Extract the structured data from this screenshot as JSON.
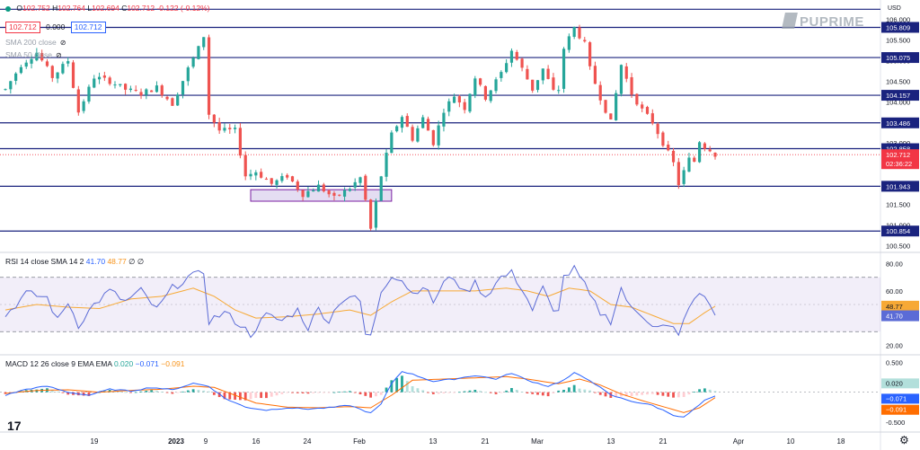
{
  "header": {
    "ohlc": {
      "O": "102.752",
      "H": "102.764",
      "L": "102.694",
      "C": "102.712",
      "change": "-0.122 (-0.12%)"
    },
    "box_price": "102.712",
    "box_zero": "0.000",
    "box_price2": "102.712",
    "sma_label_1": "SMA 200 close",
    "sma_label_2": "SMA 50 close"
  },
  "logo": {
    "text": "PUPRIME"
  },
  "currency": "USD",
  "rsi_header": {
    "label": "RSI 14 close SMA 14 2",
    "rsi": "41.70",
    "sma": "48.77",
    "extra": "∅ ∅"
  },
  "macd_header": {
    "label": "MACD 12 26 close 9 EMA EMA",
    "hist": "0.020",
    "macd": "−0.071",
    "signal": "−0.091"
  },
  "colors": {
    "up": "#26a69a",
    "down": "#ef5350",
    "level": "#1a237e",
    "rsi": "#5b6bd6",
    "rsi_sma": "#f7a935",
    "macd": "#2962ff",
    "signal": "#ff6d00",
    "range_box": "#b39ddb",
    "current": "#f23645"
  },
  "chart_data": [
    {
      "type": "candlestick",
      "name": "price",
      "yaxis_ticks": [
        "106.000",
        "105.500",
        "105.000",
        "104.500",
        "104.000",
        "103.500",
        "103.000",
        "102.500",
        "102.000",
        "101.500",
        "101.000",
        "100.500"
      ],
      "ylim": [
        100.4,
        106.3
      ],
      "levels": [
        106.25,
        105.809,
        105.075,
        104.157,
        103.486,
        102.858,
        101.943,
        100.854
      ],
      "level_labels": [
        "105.809",
        "105.075",
        "104.157",
        "103.486",
        "102.858",
        "101.943",
        "100.854"
      ],
      "current_price": "102.712",
      "countdown": "02:36:22",
      "range_box": {
        "from_index": 47,
        "to_index": 74,
        "low": 101.58,
        "high": 101.86
      },
      "path": [
        [
          0,
          104.3
        ],
        [
          3,
          104.9
        ],
        [
          6,
          105.2
        ],
        [
          9,
          104.6
        ],
        [
          12,
          105.0
        ],
        [
          14,
          103.75
        ],
        [
          17,
          104.6
        ],
        [
          20,
          104.5
        ],
        [
          23,
          104.3
        ],
        [
          26,
          104.2
        ],
        [
          29,
          104.35
        ],
        [
          32,
          103.95
        ],
        [
          35,
          104.8
        ],
        [
          37,
          105.3
        ],
        [
          38,
          105.6
        ],
        [
          39,
          103.7
        ],
        [
          41,
          103.3
        ],
        [
          44,
          103.3
        ],
        [
          46,
          102.2
        ],
        [
          48,
          102.3
        ],
        [
          51,
          102.0
        ],
        [
          54,
          102.2
        ],
        [
          57,
          101.75
        ],
        [
          60,
          101.95
        ],
        [
          63,
          101.65
        ],
        [
          66,
          101.9
        ],
        [
          68,
          102.15
        ],
        [
          69,
          101.6
        ],
        [
          70,
          100.9
        ],
        [
          72,
          102.2
        ],
        [
          74,
          103.2
        ],
        [
          76,
          103.65
        ],
        [
          78,
          103.1
        ],
        [
          80,
          103.6
        ],
        [
          82,
          103.0
        ],
        [
          84,
          103.8
        ],
        [
          86,
          104.15
        ],
        [
          88,
          103.85
        ],
        [
          90,
          104.6
        ],
        [
          92,
          104.1
        ],
        [
          95,
          104.7
        ],
        [
          97,
          105.25
        ],
        [
          99,
          104.8
        ],
        [
          101,
          104.3
        ],
        [
          103,
          104.8
        ],
        [
          105,
          104.25
        ],
        [
          106,
          104.3
        ],
        [
          107,
          105.3
        ],
        [
          109,
          105.8
        ],
        [
          111,
          105.4
        ],
        [
          112,
          104.8
        ],
        [
          114,
          104.1
        ],
        [
          116,
          103.5
        ],
        [
          118,
          104.9
        ],
        [
          120,
          104.2
        ],
        [
          122,
          103.8
        ],
        [
          124,
          103.5
        ],
        [
          126,
          103.0
        ],
        [
          128,
          102.5
        ],
        [
          129,
          102.0
        ],
        [
          130,
          102.3
        ],
        [
          131,
          102.6
        ],
        [
          132,
          102.55
        ],
        [
          133,
          103.05
        ],
        [
          134,
          102.9
        ],
        [
          135,
          102.85
        ],
        [
          136,
          102.71
        ]
      ],
      "x_ticks": [
        "19",
        "2023",
        "9",
        "16",
        "24",
        "Feb",
        "13",
        "21",
        "Mar",
        "13",
        "21",
        "Apr",
        "10",
        "18"
      ]
    },
    {
      "type": "line",
      "name": "RSI",
      "yaxis_ticks": [
        "80.00",
        "60.00",
        "20.00"
      ],
      "ylim": [
        15,
        85
      ],
      "bands": [
        70,
        30
      ],
      "rsi_path": [
        [
          0,
          42
        ],
        [
          4,
          58
        ],
        [
          8,
          55
        ],
        [
          10,
          38
        ],
        [
          12,
          52
        ],
        [
          14,
          35
        ],
        [
          17,
          50
        ],
        [
          20,
          60
        ],
        [
          23,
          52
        ],
        [
          26,
          60
        ],
        [
          29,
          46
        ],
        [
          32,
          62
        ],
        [
          35,
          70
        ],
        [
          37,
          72
        ],
        [
          38,
          74
        ],
        [
          39,
          38
        ],
        [
          42,
          44
        ],
        [
          45,
          35
        ],
        [
          47,
          28
        ],
        [
          50,
          42
        ],
        [
          53,
          38
        ],
        [
          56,
          46
        ],
        [
          58,
          33
        ],
        [
          60,
          47
        ],
        [
          62,
          38
        ],
        [
          64,
          52
        ],
        [
          66,
          56
        ],
        [
          68,
          52
        ],
        [
          69,
          28
        ],
        [
          70,
          26
        ],
        [
          72,
          60
        ],
        [
          74,
          72
        ],
        [
          76,
          68
        ],
        [
          78,
          58
        ],
        [
          80,
          64
        ],
        [
          82,
          52
        ],
        [
          84,
          66
        ],
        [
          86,
          70
        ],
        [
          88,
          58
        ],
        [
          90,
          66
        ],
        [
          92,
          56
        ],
        [
          95,
          70
        ],
        [
          97,
          73
        ],
        [
          99,
          62
        ],
        [
          101,
          46
        ],
        [
          103,
          62
        ],
        [
          105,
          44
        ],
        [
          106,
          48
        ],
        [
          107,
          70
        ],
        [
          109,
          76
        ],
        [
          111,
          64
        ],
        [
          112,
          56
        ],
        [
          114,
          44
        ],
        [
          116,
          38
        ],
        [
          118,
          62
        ],
        [
          120,
          46
        ],
        [
          122,
          42
        ],
        [
          124,
          36
        ],
        [
          126,
          34
        ],
        [
          128,
          32
        ],
        [
          129,
          26
        ],
        [
          130,
          38
        ],
        [
          131,
          50
        ],
        [
          132,
          52
        ],
        [
          133,
          58
        ],
        [
          134,
          54
        ],
        [
          135,
          50
        ],
        [
          136,
          41.7
        ]
      ],
      "sma_path": [
        [
          0,
          46
        ],
        [
          6,
          50
        ],
        [
          12,
          48
        ],
        [
          18,
          47
        ],
        [
          24,
          54
        ],
        [
          30,
          56
        ],
        [
          36,
          62
        ],
        [
          40,
          56
        ],
        [
          44,
          46
        ],
        [
          48,
          40
        ],
        [
          54,
          41
        ],
        [
          60,
          43
        ],
        [
          66,
          46
        ],
        [
          70,
          42
        ],
        [
          74,
          52
        ],
        [
          78,
          60
        ],
        [
          84,
          60
        ],
        [
          90,
          60
        ],
        [
          96,
          62
        ],
        [
          100,
          60
        ],
        [
          104,
          56
        ],
        [
          108,
          62
        ],
        [
          112,
          60
        ],
        [
          116,
          50
        ],
        [
          120,
          48
        ],
        [
          124,
          42
        ],
        [
          128,
          36
        ],
        [
          131,
          36
        ],
        [
          134,
          44
        ],
        [
          136,
          48.77
        ]
      ]
    },
    {
      "type": "macd",
      "name": "MACD",
      "yaxis_ticks": [
        "0.500",
        "-0.500"
      ],
      "ylim": [
        -0.62,
        0.55
      ],
      "macd_path": [
        [
          0,
          -0.05
        ],
        [
          4,
          0.05
        ],
        [
          8,
          0.1
        ],
        [
          12,
          0.0
        ],
        [
          16,
          -0.05
        ],
        [
          20,
          0.05
        ],
        [
          24,
          0.02
        ],
        [
          28,
          0.08
        ],
        [
          32,
          0.04
        ],
        [
          36,
          0.15
        ],
        [
          39,
          0.1
        ],
        [
          42,
          -0.1
        ],
        [
          46,
          -0.25
        ],
        [
          50,
          -0.3
        ],
        [
          54,
          -0.26
        ],
        [
          58,
          -0.28
        ],
        [
          62,
          -0.26
        ],
        [
          66,
          -0.22
        ],
        [
          70,
          -0.35
        ],
        [
          72,
          -0.2
        ],
        [
          74,
          0.15
        ],
        [
          76,
          0.35
        ],
        [
          78,
          0.3
        ],
        [
          82,
          0.18
        ],
        [
          86,
          0.22
        ],
        [
          90,
          0.28
        ],
        [
          94,
          0.22
        ],
        [
          97,
          0.32
        ],
        [
          100,
          0.2
        ],
        [
          104,
          0.1
        ],
        [
          107,
          0.2
        ],
        [
          109,
          0.32
        ],
        [
          112,
          0.2
        ],
        [
          116,
          -0.05
        ],
        [
          120,
          -0.15
        ],
        [
          124,
          -0.22
        ],
        [
          128,
          -0.38
        ],
        [
          130,
          -0.42
        ],
        [
          132,
          -0.28
        ],
        [
          134,
          -0.14
        ],
        [
          136,
          -0.071
        ]
      ],
      "signal_path": [
        [
          0,
          -0.02
        ],
        [
          6,
          0.03
        ],
        [
          12,
          0.04
        ],
        [
          18,
          0.0
        ],
        [
          24,
          0.03
        ],
        [
          30,
          0.05
        ],
        [
          36,
          0.1
        ],
        [
          40,
          0.08
        ],
        [
          44,
          -0.05
        ],
        [
          48,
          -0.18
        ],
        [
          54,
          -0.25
        ],
        [
          60,
          -0.26
        ],
        [
          66,
          -0.24
        ],
        [
          70,
          -0.26
        ],
        [
          74,
          -0.05
        ],
        [
          78,
          0.2
        ],
        [
          84,
          0.22
        ],
        [
          90,
          0.24
        ],
        [
          96,
          0.26
        ],
        [
          100,
          0.22
        ],
        [
          106,
          0.14
        ],
        [
          110,
          0.22
        ],
        [
          114,
          0.12
        ],
        [
          118,
          -0.03
        ],
        [
          122,
          -0.14
        ],
        [
          126,
          -0.24
        ],
        [
          130,
          -0.34
        ],
        [
          133,
          -0.26
        ],
        [
          136,
          -0.091
        ]
      ]
    }
  ]
}
